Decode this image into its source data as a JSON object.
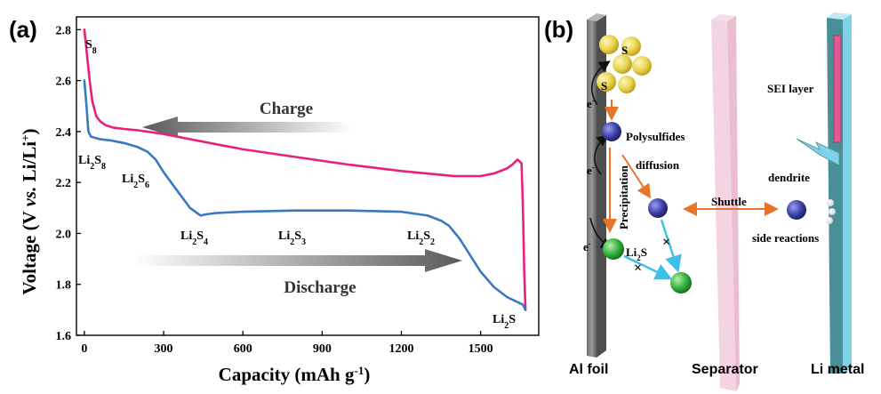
{
  "panel_a": {
    "label": "(a)",
    "ylabel": {
      "main": "Voltage (V ",
      "italic": "vs.",
      "rest": " Li/Li",
      "sup": "+",
      "close": ")"
    },
    "xlabel": {
      "main": "Capacity (mAh g",
      "sup": "-1",
      "close": ")"
    },
    "charge_label": "Charge",
    "discharge_label": "Discharge",
    "species": [
      {
        "id": "s8",
        "base": "S",
        "sub": "8",
        "suffix": ""
      },
      {
        "id": "li2s8",
        "base": "Li",
        "sub": "2",
        "suffix": "S",
        "sub2": "8"
      },
      {
        "id": "li2s6",
        "base": "Li",
        "sub": "2",
        "suffix": "S",
        "sub2": "6"
      },
      {
        "id": "li2s4",
        "base": "Li",
        "sub": "2",
        "suffix": "S",
        "sub2": "4"
      },
      {
        "id": "li2s3",
        "base": "Li",
        "sub": "2",
        "suffix": "S",
        "sub2": "3"
      },
      {
        "id": "li2s2",
        "base": "Li",
        "sub": "2",
        "suffix": "S",
        "sub2": "2"
      },
      {
        "id": "li2s",
        "base": "Li",
        "sub": "2",
        "suffix": "S",
        "sub2": ""
      }
    ],
    "colors": {
      "charge": "#e8207a",
      "discharge": "#3a78bf"
    }
  },
  "chart_data": {
    "type": "line",
    "xlabel": "Capacity (mAh g-1)",
    "ylabel": "Voltage (V vs. Li/Li+)",
    "xlim": [
      -30,
      1720
    ],
    "ylim": [
      1.6,
      2.85
    ],
    "xticks": [
      0,
      300,
      600,
      900,
      1200,
      1500
    ],
    "yticks": [
      1.6,
      1.8,
      2.0,
      2.2,
      2.4,
      2.6,
      2.8
    ],
    "series": [
      {
        "name": "Charge",
        "color": "#e8207a",
        "x": [
          0,
          10,
          20,
          30,
          45,
          60,
          80,
          110,
          150,
          200,
          300,
          400,
          500,
          600,
          800,
          1000,
          1200,
          1400,
          1500,
          1550,
          1600,
          1620,
          1640,
          1655,
          1660,
          1665,
          1670
        ],
        "y": [
          2.8,
          2.7,
          2.6,
          2.52,
          2.46,
          2.44,
          2.425,
          2.415,
          2.41,
          2.405,
          2.39,
          2.37,
          2.35,
          2.33,
          2.3,
          2.27,
          2.245,
          2.225,
          2.225,
          2.235,
          2.255,
          2.27,
          2.29,
          2.275,
          2.1,
          1.85,
          1.7
        ]
      },
      {
        "name": "Discharge",
        "color": "#3a78bf",
        "x": [
          0,
          8,
          15,
          25,
          40,
          60,
          100,
          150,
          200,
          240,
          270,
          300,
          350,
          400,
          440,
          460,
          500,
          600,
          800,
          900,
          1000,
          1200,
          1300,
          1350,
          1380,
          1420,
          1500,
          1550,
          1600,
          1660,
          1670
        ],
        "y": [
          2.6,
          2.5,
          2.4,
          2.38,
          2.375,
          2.37,
          2.365,
          2.355,
          2.34,
          2.32,
          2.29,
          2.24,
          2.17,
          2.1,
          2.07,
          2.075,
          2.08,
          2.085,
          2.09,
          2.09,
          2.09,
          2.085,
          2.07,
          2.05,
          2.03,
          1.98,
          1.85,
          1.79,
          1.75,
          1.72,
          1.7
        ]
      }
    ]
  },
  "panel_b": {
    "label": "(b)",
    "sulfur_label": "S",
    "electron_label": "e",
    "electron_sup": "-",
    "polysulfides_label": "Polysulfides",
    "diffusion_label": "diffusion",
    "precipitation_label": "Precipitation",
    "li2s_label": {
      "base": "Li",
      "sub": "2",
      "suffix": "S"
    },
    "shuttle_label": "Shuttle",
    "sei_label": "SEI layer",
    "dendrite_label": "dendrite",
    "side_reactions_label": "side reactions",
    "al_foil_label": "Al foil",
    "separator_label": "Separator",
    "li_metal_label": "Li metal",
    "colors": {
      "arrow": "#e8742a",
      "path": "#3cc0e8",
      "sphere_yellow": "#e8d34a",
      "sphere_blue": "#3b3ea8",
      "sphere_green": "#2fae3a"
    }
  }
}
